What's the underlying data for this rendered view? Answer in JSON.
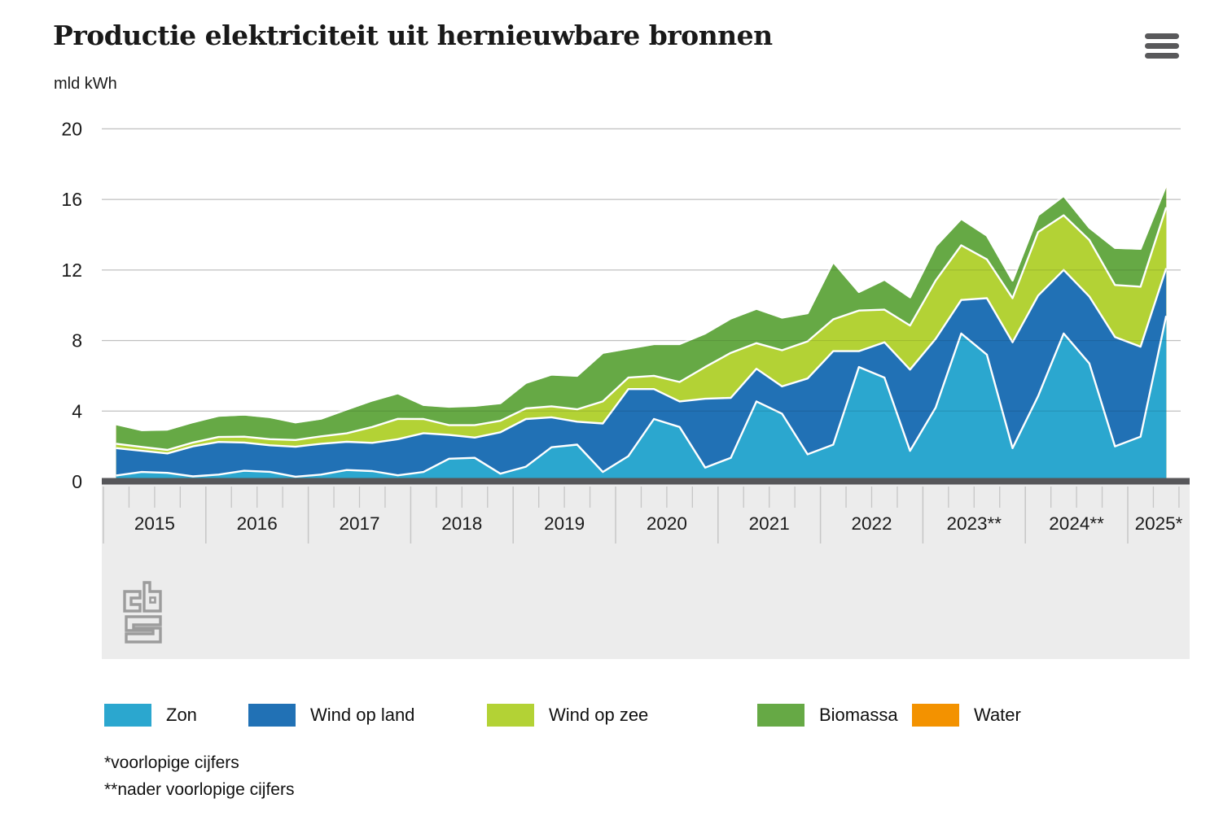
{
  "header": {
    "title": "Productie elektriciteit uit hernieuwbare bronnen",
    "unit": "mld kWh",
    "menu_icon": "hamburger-icon"
  },
  "footnotes": {
    "line1": "*voorlopige cijfers",
    "line2": "**nader voorlopige cijfers"
  },
  "logo": {
    "name": "cbs-logo",
    "color": "#9c9c9c"
  },
  "chart_data": {
    "type": "area",
    "stacked": true,
    "title": "Productie elektriciteit uit hernieuwbare bronnen",
    "ylabel": "mld kWh",
    "ylim": [
      0,
      20
    ],
    "yticks": [
      0,
      4,
      8,
      12,
      16,
      20
    ],
    "grid": true,
    "legend_position": "bottom",
    "x_years": [
      {
        "label": "2015",
        "quarters": 4
      },
      {
        "label": "2016",
        "quarters": 4
      },
      {
        "label": "2017",
        "quarters": 4
      },
      {
        "label": "2018",
        "quarters": 4
      },
      {
        "label": "2019",
        "quarters": 4
      },
      {
        "label": "2020",
        "quarters": 4
      },
      {
        "label": "2021",
        "quarters": 4
      },
      {
        "label": "2022",
        "quarters": 4
      },
      {
        "label": "2023**",
        "quarters": 4
      },
      {
        "label": "2024**",
        "quarters": 4
      },
      {
        "label": "2025*",
        "quarters": 2
      }
    ],
    "x_quarters": [
      "2015 Q1",
      "2015 Q2",
      "2015 Q3",
      "2015 Q4",
      "2016 Q1",
      "2016 Q2",
      "2016 Q3",
      "2016 Q4",
      "2017 Q1",
      "2017 Q2",
      "2017 Q3",
      "2017 Q4",
      "2018 Q1",
      "2018 Q2",
      "2018 Q3",
      "2018 Q4",
      "2019 Q1",
      "2019 Q2",
      "2019 Q3",
      "2019 Q4",
      "2020 Q1",
      "2020 Q2",
      "2020 Q3",
      "2020 Q4",
      "2021 Q1",
      "2021 Q2",
      "2021 Q3",
      "2021 Q4",
      "2022 Q1",
      "2022 Q2",
      "2022 Q3",
      "2022 Q4",
      "2023 Q1",
      "2023 Q2",
      "2023 Q3",
      "2023 Q4",
      "2024 Q1",
      "2024 Q2",
      "2024 Q3",
      "2024 Q4",
      "2025 Q1",
      "2025 Q2"
    ],
    "series": [
      {
        "name": "Zon",
        "color": "#2BA7CF",
        "values": [
          0.35,
          0.55,
          0.5,
          0.3,
          0.4,
          0.62,
          0.56,
          0.28,
          0.4,
          0.66,
          0.6,
          0.36,
          0.55,
          1.3,
          1.35,
          0.45,
          0.85,
          1.95,
          2.1,
          0.55,
          1.45,
          3.55,
          3.1,
          0.8,
          1.35,
          4.55,
          3.85,
          1.55,
          2.1,
          6.5,
          5.9,
          1.75,
          4.2,
          8.4,
          7.2,
          1.9,
          4.85,
          8.4,
          6.7,
          2.0,
          2.55,
          9.4
        ]
      },
      {
        "name": "Wind op land",
        "color": "#2171B5",
        "values": [
          1.55,
          1.2,
          1.1,
          1.7,
          1.85,
          1.6,
          1.5,
          1.7,
          1.75,
          1.6,
          1.6,
          2.05,
          2.2,
          1.35,
          1.15,
          2.35,
          2.7,
          1.7,
          1.3,
          2.75,
          3.8,
          1.7,
          1.45,
          3.9,
          3.4,
          1.85,
          1.55,
          4.3,
          5.3,
          0.9,
          2.0,
          4.6,
          3.9,
          1.9,
          3.2,
          6.0,
          5.7,
          3.6,
          3.8,
          6.2,
          5.1,
          2.7
        ]
      },
      {
        "name": "Wind op zee",
        "color": "#B3D235",
        "values": [
          0.25,
          0.22,
          0.2,
          0.22,
          0.28,
          0.33,
          0.35,
          0.38,
          0.42,
          0.48,
          0.9,
          1.15,
          0.8,
          0.55,
          0.7,
          0.65,
          0.6,
          0.62,
          0.7,
          1.25,
          0.65,
          0.75,
          1.1,
          1.8,
          2.55,
          1.45,
          2.05,
          2.1,
          1.8,
          2.3,
          1.85,
          2.5,
          3.3,
          3.1,
          2.2,
          2.5,
          3.6,
          3.1,
          3.2,
          2.95,
          3.4,
          3.45
        ]
      },
      {
        "name": "Biomassa",
        "color": "#66A945",
        "values": [
          1.1,
          0.95,
          1.15,
          1.15,
          1.2,
          1.25,
          1.25,
          1.0,
          1.0,
          1.35,
          1.5,
          1.45,
          0.8,
          1.05,
          1.1,
          1.0,
          1.45,
          1.8,
          1.9,
          2.75,
          1.65,
          1.8,
          2.15,
          1.9,
          1.95,
          1.95,
          1.85,
          1.6,
          3.25,
          1.05,
          1.7,
          1.6,
          1.95,
          1.5,
          1.35,
          1.0,
          0.95,
          1.1,
          0.7,
          2.1,
          2.15,
          1.25
        ]
      },
      {
        "name": "Water",
        "color": "#F39200",
        "values": [
          0.01,
          0.01,
          0.01,
          0.01,
          0.01,
          0.01,
          0.01,
          0.01,
          0.01,
          0.01,
          0.01,
          0.01,
          0.01,
          0.01,
          0.01,
          0.01,
          0.01,
          0.01,
          0.01,
          0.01,
          0.01,
          0.01,
          0.01,
          0.01,
          0.01,
          0.01,
          0.01,
          0.01,
          0.01,
          0.01,
          0.01,
          0.01,
          0.01,
          0.01,
          0.01,
          0.01,
          0.01,
          0.01,
          0.01,
          0.01,
          0.01,
          0.01
        ]
      }
    ],
    "colors": {
      "grid": "#d6d6d6",
      "axis_bar": "#57575a",
      "axis_band": "#ececec",
      "tick": "#c6c6c6",
      "text": "#1a1a1a",
      "series_outline": "#ffffff"
    }
  }
}
